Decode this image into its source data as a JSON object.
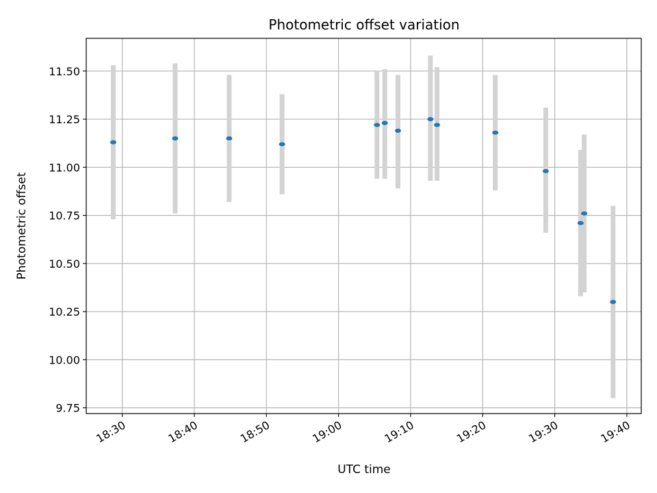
{
  "chart_data": {
    "type": "scatter",
    "title": "Photometric offset variation",
    "xlabel": "UTC time",
    "ylabel": "Photometric offset",
    "x_axis_kind": "time",
    "xlim": [
      "18:25:00",
      "19:42:00"
    ],
    "ylim": [
      9.72,
      11.67
    ],
    "x_ticks": [
      "18:30",
      "18:40",
      "18:50",
      "19:00",
      "19:10",
      "19:20",
      "19:30",
      "19:40"
    ],
    "y_ticks": [
      "9.75",
      "10.00",
      "10.25",
      "10.50",
      "10.75",
      "11.00",
      "11.25",
      "11.50"
    ],
    "grid": true,
    "marker_color": "#1f77b4",
    "errorbar_color": "#d3d3d3",
    "points": [
      {
        "t": "18:28:45",
        "y": 11.13,
        "ylow": 10.73,
        "yhigh": 11.53
      },
      {
        "t": "18:37:20",
        "y": 11.15,
        "ylow": 10.76,
        "yhigh": 11.54
      },
      {
        "t": "18:44:50",
        "y": 11.15,
        "ylow": 10.82,
        "yhigh": 11.48
      },
      {
        "t": "18:52:10",
        "y": 11.12,
        "ylow": 10.86,
        "yhigh": 11.38
      },
      {
        "t": "19:05:20",
        "y": 11.22,
        "ylow": 10.94,
        "yhigh": 11.5
      },
      {
        "t": "19:06:25",
        "y": 11.23,
        "ylow": 10.94,
        "yhigh": 11.51
      },
      {
        "t": "19:08:15",
        "y": 11.19,
        "ylow": 10.89,
        "yhigh": 11.48
      },
      {
        "t": "19:12:45",
        "y": 11.25,
        "ylow": 10.93,
        "yhigh": 11.58
      },
      {
        "t": "19:13:40",
        "y": 11.22,
        "ylow": 10.93,
        "yhigh": 11.52
      },
      {
        "t": "19:21:45",
        "y": 11.18,
        "ylow": 10.88,
        "yhigh": 11.48
      },
      {
        "t": "19:28:45",
        "y": 10.98,
        "ylow": 10.66,
        "yhigh": 11.31
      },
      {
        "t": "19:33:35",
        "y": 10.71,
        "ylow": 10.33,
        "yhigh": 11.09
      },
      {
        "t": "19:34:05",
        "y": 10.76,
        "ylow": 10.35,
        "yhigh": 11.17
      },
      {
        "t": "19:38:05",
        "y": 10.3,
        "ylow": 9.8,
        "yhigh": 10.8
      }
    ]
  }
}
